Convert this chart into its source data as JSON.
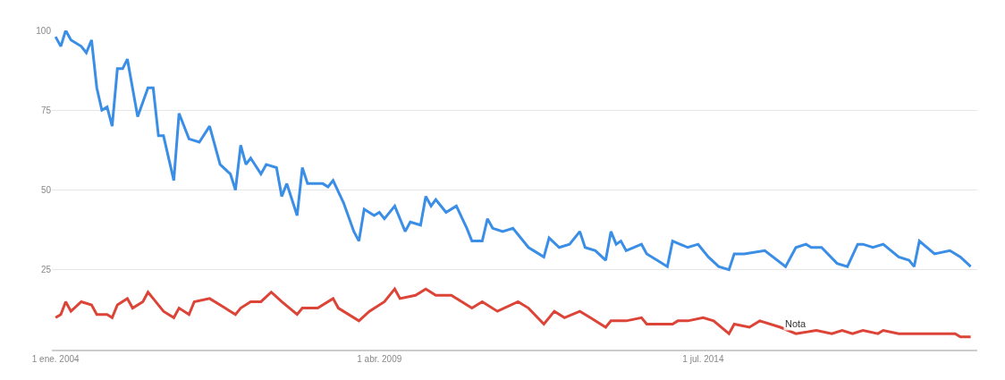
{
  "chart_data": {
    "type": "line",
    "xlim": [
      "2003-12-10",
      "2018-12-10"
    ],
    "ylim": [
      0,
      100
    ],
    "yticks": [
      25,
      50,
      75,
      100
    ],
    "xticks": [
      {
        "value": "2004-01-01",
        "label": "1 ene. 2004"
      },
      {
        "value": "2009-04-01",
        "label": "1 abr. 2009"
      },
      {
        "value": "2014-07-01",
        "label": "1 jul. 2014"
      }
    ],
    "grid": "y",
    "marker": "none",
    "line_style": "solid",
    "annotations": [
      {
        "text": "Nota",
        "x": "2016-01",
        "y": 5
      }
    ],
    "series": [
      {
        "color": "#3a8ee6",
        "x": [
          "2004-01",
          "2004-02",
          "2004-03",
          "2004-04",
          "2004-06",
          "2004-07",
          "2004-08",
          "2004-09",
          "2004-10",
          "2004-11",
          "2004-12",
          "2005-01",
          "2005-02",
          "2005-03",
          "2005-05",
          "2005-07",
          "2005-08",
          "2005-09",
          "2005-10",
          "2005-12",
          "2006-01",
          "2006-03",
          "2006-05",
          "2006-07",
          "2006-09",
          "2006-11",
          "2006-12",
          "2007-01",
          "2007-02",
          "2007-03",
          "2007-05",
          "2007-06",
          "2007-08",
          "2007-09",
          "2007-10",
          "2007-12",
          "2008-01",
          "2008-02",
          "2008-05",
          "2008-06",
          "2008-07",
          "2008-09",
          "2008-11",
          "2008-12",
          "2009-01",
          "2009-03",
          "2009-04",
          "2009-05",
          "2009-07",
          "2009-09",
          "2009-10",
          "2009-12",
          "2010-01",
          "2010-02",
          "2010-03",
          "2010-05",
          "2010-07",
          "2010-09",
          "2010-10",
          "2010-12",
          "2011-01",
          "2011-02",
          "2011-04",
          "2011-06",
          "2011-09",
          "2011-11",
          "2011-12",
          "2012-01",
          "2012-03",
          "2012-05",
          "2012-07",
          "2012-08",
          "2012-10",
          "2012-12",
          "2013-01",
          "2013-02",
          "2013-03",
          "2013-04",
          "2013-07",
          "2013-08",
          "2013-10",
          "2013-12",
          "2014-01",
          "2014-04",
          "2014-06",
          "2014-08",
          "2014-10",
          "2014-12",
          "2015-01",
          "2015-03",
          "2015-07",
          "2015-11",
          "2016-01",
          "2016-03",
          "2016-04",
          "2016-06",
          "2016-09",
          "2016-11",
          "2017-01",
          "2017-02",
          "2017-04",
          "2017-06",
          "2017-09",
          "2017-11",
          "2017-12",
          "2018-01",
          "2018-04",
          "2018-07",
          "2018-09",
          "2018-11"
        ],
        "values": [
          98,
          95,
          100,
          97,
          95,
          93,
          97,
          82,
          75,
          76,
          70,
          88,
          88,
          91,
          73,
          82,
          82,
          67,
          67,
          53,
          74,
          66,
          65,
          70,
          58,
          55,
          50,
          64,
          58,
          60,
          55,
          58,
          57,
          48,
          52,
          42,
          57,
          52,
          52,
          51,
          53,
          46,
          37,
          34,
          44,
          42,
          43,
          41,
          45,
          37,
          40,
          39,
          48,
          45,
          47,
          43,
          45,
          38,
          34,
          34,
          41,
          38,
          37,
          38,
          32,
          30,
          29,
          35,
          32,
          33,
          37,
          32,
          31,
          28,
          37,
          33,
          34,
          31,
          33,
          30,
          28,
          26,
          34,
          32,
          33,
          29,
          26,
          25,
          30,
          30,
          31,
          26,
          32,
          33,
          32,
          32,
          27,
          26,
          33,
          33,
          32,
          33,
          29,
          28,
          26,
          34,
          30,
          31,
          29,
          26
        ]
      },
      {
        "color": "#dc4437",
        "x": [
          "2004-01",
          "2004-02",
          "2004-03",
          "2004-04",
          "2004-06",
          "2004-08",
          "2004-09",
          "2004-11",
          "2004-12",
          "2005-01",
          "2005-03",
          "2005-04",
          "2005-06",
          "2005-07",
          "2005-08",
          "2005-10",
          "2005-12",
          "2006-01",
          "2006-03",
          "2006-04",
          "2006-07",
          "2006-10",
          "2006-12",
          "2007-01",
          "2007-03",
          "2007-05",
          "2007-07",
          "2007-09",
          "2007-12",
          "2008-01",
          "2008-04",
          "2008-07",
          "2008-08",
          "2008-12",
          "2009-02",
          "2009-05",
          "2009-07",
          "2009-08",
          "2009-11",
          "2010-01",
          "2010-03",
          "2010-06",
          "2010-10",
          "2010-12",
          "2011-03",
          "2011-07",
          "2011-09",
          "2011-12",
          "2012-02",
          "2012-04",
          "2012-07",
          "2012-09",
          "2012-12",
          "2013-01",
          "2013-04",
          "2013-07",
          "2013-08",
          "2014-01",
          "2014-02",
          "2014-04",
          "2014-07",
          "2014-09",
          "2014-12",
          "2015-01",
          "2015-04",
          "2015-06",
          "2015-10",
          "2016-01",
          "2016-05",
          "2016-08",
          "2016-10",
          "2016-12",
          "2017-02",
          "2017-05",
          "2017-06",
          "2017-09",
          "2017-12",
          "2018-04",
          "2018-08",
          "2018-09",
          "2018-11"
        ],
        "values": [
          10,
          11,
          15,
          12,
          15,
          14,
          11,
          11,
          10,
          14,
          16,
          13,
          15,
          18,
          16,
          12,
          10,
          13,
          11,
          15,
          16,
          13,
          11,
          13,
          15,
          15,
          18,
          15,
          11,
          13,
          13,
          16,
          13,
          9,
          12,
          15,
          19,
          16,
          17,
          19,
          17,
          17,
          13,
          15,
          12,
          15,
          13,
          8,
          12,
          10,
          12,
          10,
          7,
          9,
          9,
          10,
          8,
          8,
          9,
          9,
          10,
          9,
          5,
          8,
          7,
          9,
          7,
          5,
          6,
          5,
          6,
          5,
          6,
          5,
          6,
          5,
          5,
          5,
          5,
          4,
          4
        ]
      }
    ]
  }
}
